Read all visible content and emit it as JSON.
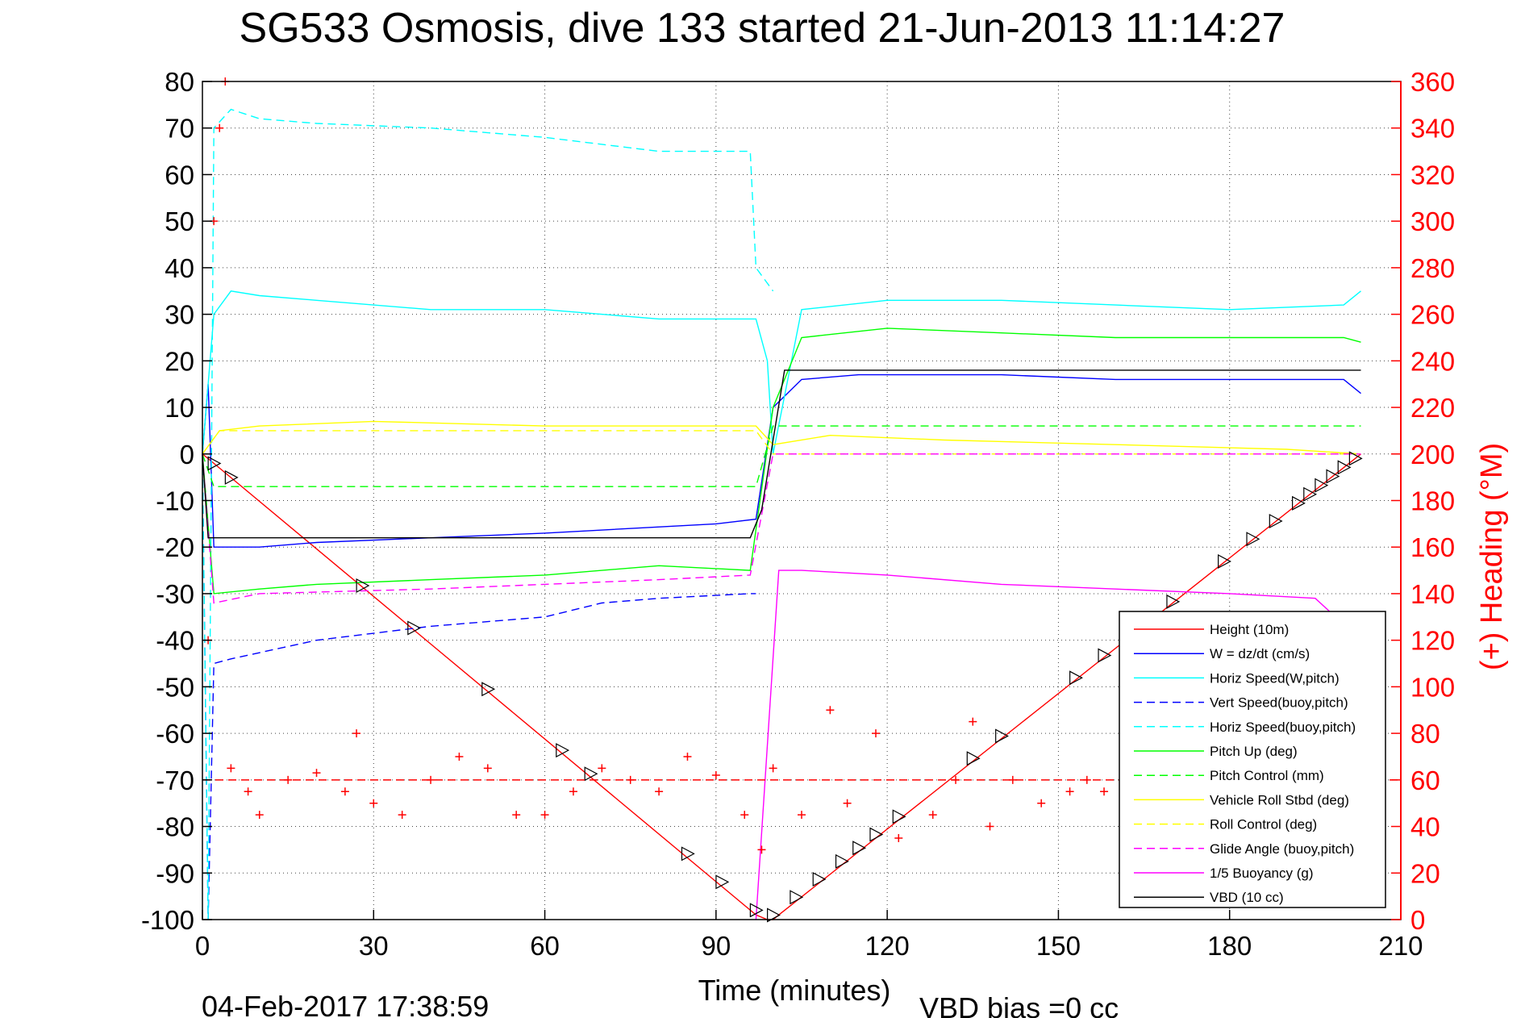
{
  "chart_data": {
    "type": "line",
    "title": "SG533 Osmosis, dive 133 started 21-Jun-2013 11:14:27",
    "xlabel": "Time (minutes)",
    "ylabel_right": "(+) Heading (°M)",
    "footer_left": "04-Feb-2017 17:38:59",
    "footer_right": "VBD bias =0 cc",
    "xlim": [
      0,
      210
    ],
    "ylim": [
      -100,
      80
    ],
    "ylim_right": [
      0,
      360
    ],
    "x_ticks": [
      "0",
      "30",
      "60",
      "90",
      "120",
      "150",
      "180",
      "210"
    ],
    "y_ticks": [
      "80",
      "70",
      "60",
      "50",
      "40",
      "30",
      "20",
      "10",
      "0",
      "-10",
      "-20",
      "-30",
      "-40",
      "-50",
      "-60",
      "-70",
      "-80",
      "-90",
      "-100"
    ],
    "y_ticks_right": [
      "360",
      "340",
      "320",
      "300",
      "280",
      "260",
      "240",
      "220",
      "200",
      "180",
      "160",
      "140",
      "120",
      "100",
      "80",
      "60",
      "40",
      "20",
      "0"
    ],
    "grid": true,
    "legend_position": "bottom-right",
    "series": [
      {
        "name": "Height (10m)",
        "color": "#ff0000",
        "style": "solid",
        "x": [
          0,
          1,
          97,
          99,
          100,
          101,
          203
        ],
        "y": [
          0,
          -1,
          -99,
          -100,
          -100,
          -99,
          0
        ]
      },
      {
        "name": "W = dz/dt (cm/s)",
        "color": "#0000ff",
        "style": "solid",
        "x": [
          0,
          1,
          2,
          10,
          20,
          40,
          60,
          90,
          97,
          100,
          105,
          115,
          120,
          140,
          160,
          180,
          200,
          203
        ],
        "y": [
          0,
          15,
          -20,
          -20,
          -19,
          -18,
          -17,
          -15,
          -14,
          10,
          16,
          17,
          17,
          17,
          16,
          16,
          16,
          13
        ]
      },
      {
        "name": "Horiz Speed(W,pitch)",
        "color": "#00ffff",
        "style": "solid",
        "x": [
          0,
          2,
          5,
          10,
          20,
          40,
          60,
          80,
          97,
          99,
          100,
          105,
          120,
          140,
          160,
          180,
          200,
          203
        ],
        "y": [
          0,
          30,
          35,
          34,
          33,
          31,
          31,
          29,
          29,
          20,
          0,
          31,
          33,
          33,
          32,
          31,
          32,
          35
        ]
      },
      {
        "name": "Vert Speed(buoy,pitch)",
        "color": "#0000ff",
        "style": "dashed",
        "x": [
          0,
          1,
          2,
          5,
          20,
          40,
          60,
          70,
          80,
          96,
          97
        ],
        "y": [
          0,
          -100,
          -45,
          -44,
          -40,
          -37,
          -35,
          -32,
          -31,
          -30,
          -30
        ]
      },
      {
        "name": "Horiz Speed(buoy,pitch)",
        "color": "#00ffff",
        "style": "dashed",
        "x": [
          0,
          1,
          2,
          5,
          10,
          20,
          40,
          60,
          80,
          96,
          97,
          100
        ],
        "y": [
          0,
          -100,
          70,
          74,
          72,
          71,
          70,
          68,
          65,
          65,
          40,
          35
        ]
      },
      {
        "name": "Pitch Up (deg)",
        "color": "#00ff00",
        "style": "solid",
        "x": [
          0,
          2,
          10,
          20,
          40,
          60,
          80,
          96,
          100,
          105,
          120,
          140,
          160,
          180,
          200,
          203
        ],
        "y": [
          0,
          -30,
          -29,
          -28,
          -27,
          -26,
          -24,
          -25,
          10,
          25,
          27,
          26,
          25,
          25,
          25,
          24
        ]
      },
      {
        "name": "Pitch Control (mm)",
        "color": "#00ff00",
        "style": "dashed",
        "x": [
          0,
          2,
          97,
          100,
          203
        ],
        "y": [
          0,
          -7,
          -7,
          6,
          6
        ]
      },
      {
        "name": "Vehicle Roll Stbd (deg)",
        "color": "#ffff00",
        "style": "solid",
        "x": [
          0,
          3,
          10,
          30,
          60,
          90,
          97,
          100,
          110,
          130,
          160,
          190,
          203
        ],
        "y": [
          0,
          5,
          6,
          7,
          6,
          6,
          6,
          2,
          4,
          3,
          2,
          1,
          0
        ]
      },
      {
        "name": "Roll Control (deg)",
        "color": "#ffff00",
        "style": "dashed",
        "x": [
          0,
          3,
          97,
          100,
          203
        ],
        "y": [
          0,
          5,
          5,
          0,
          0
        ]
      },
      {
        "name": "Glide Angle (buoy,pitch)",
        "color": "#ff00ff",
        "style": "dashed",
        "x": [
          0,
          2,
          10,
          40,
          60,
          80,
          96,
          100,
          203
        ],
        "y": [
          0,
          -32,
          -30,
          -29,
          -28,
          -27,
          -26,
          0,
          0
        ]
      },
      {
        "name": "1/5 Buoyancy (g)",
        "color": "#ff00ff",
        "style": "solid",
        "x": [
          97,
          101,
          105,
          120,
          140,
          160,
          180,
          195,
          203
        ],
        "y": [
          -100,
          -25,
          -25,
          -26,
          -28,
          -29,
          -30,
          -31,
          -40
        ]
      },
      {
        "name": "VBD (10 cc)",
        "color": "#000000",
        "style": "solid",
        "x": [
          0,
          1,
          2,
          96,
          98,
          102,
          203
        ],
        "y": [
          0,
          -18,
          -18,
          -18,
          -12,
          18,
          18
        ]
      }
    ],
    "heading_series": {
      "name": "Heading",
      "color": "#ff0000",
      "marker": "+",
      "axis": "right",
      "x": [
        1,
        2,
        3,
        4,
        5,
        8,
        10,
        15,
        20,
        25,
        27,
        30,
        35,
        40,
        45,
        50,
        55,
        60,
        65,
        70,
        75,
        80,
        85,
        90,
        95,
        98,
        100,
        105,
        110,
        113,
        118,
        122,
        128,
        132,
        135,
        138,
        142,
        147,
        152,
        155,
        158,
        162,
        165,
        170
      ],
      "y": [
        120,
        300,
        340,
        360,
        65,
        55,
        45,
        60,
        63,
        55,
        80,
        50,
        45,
        60,
        70,
        65,
        45,
        45,
        55,
        65,
        60,
        55,
        70,
        62,
        45,
        30,
        65,
        45,
        90,
        50,
        80,
        35,
        45,
        60,
        85,
        40,
        60,
        50,
        55,
        60,
        55,
        45,
        35,
        70
      ],
      "reference_line": 60
    }
  }
}
